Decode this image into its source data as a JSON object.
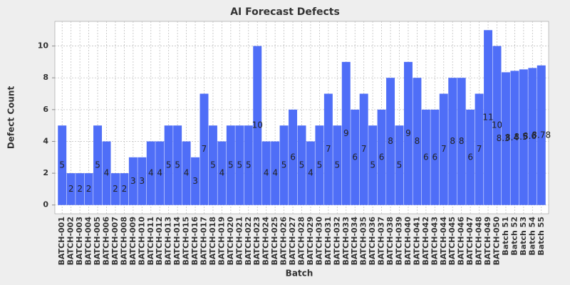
{
  "chart_data": {
    "type": "bar",
    "title": "AI Forecast Defects",
    "x_label": "Batch",
    "y_label": "Defect Count",
    "categories": [
      "BATCH-001",
      "BATCH-002",
      "BATCH-003",
      "BATCH-004",
      "BATCH-005",
      "BATCH-006",
      "BATCH-007",
      "BATCH-008",
      "BATCH-009",
      "BATCH-010",
      "BATCH-011",
      "BATCH-012",
      "BATCH-013",
      "BATCH-014",
      "BATCH-015",
      "BATCH-016",
      "BATCH-017",
      "BATCH-018",
      "BATCH-019",
      "BATCH-020",
      "BATCH-021",
      "BATCH-022",
      "BATCH-023",
      "BATCH-024",
      "BATCH-025",
      "BATCH-026",
      "BATCH-027",
      "BATCH-028",
      "BATCH-029",
      "BATCH-030",
      "BATCH-031",
      "BATCH-032",
      "BATCH-033",
      "BATCH-034",
      "BATCH-035",
      "BATCH-036",
      "BATCH-037",
      "BATCH-038",
      "BATCH-039",
      "BATCH-040",
      "BATCH-041",
      "BATCH-042",
      "BATCH-043",
      "BATCH-044",
      "BATCH-045",
      "BATCH-046",
      "BATCH-047",
      "BATCH-048",
      "BATCH-049",
      "BATCH-050",
      "Batch 51",
      "Batch 52",
      "Batch 53",
      "Batch 54",
      "Batch 55"
    ],
    "values": [
      5,
      2,
      2,
      2,
      5,
      4,
      2,
      2,
      3,
      3,
      4,
      4,
      5,
      5,
      4,
      3,
      7,
      5,
      4,
      5,
      5,
      5,
      10,
      4,
      4,
      5,
      6,
      5,
      4,
      5,
      7,
      5,
      9,
      6,
      7,
      5,
      6,
      8,
      5,
      9,
      8,
      6,
      6,
      7,
      8,
      8,
      6,
      7,
      11,
      10,
      8.35,
      8.44,
      8.53,
      8.62,
      8.78
    ],
    "color": "#4f6ef7",
    "ylim": [
      -0.55,
      11.55
    ],
    "yticks": [
      0,
      2,
      4,
      6,
      8,
      10
    ],
    "grid": true
  }
}
